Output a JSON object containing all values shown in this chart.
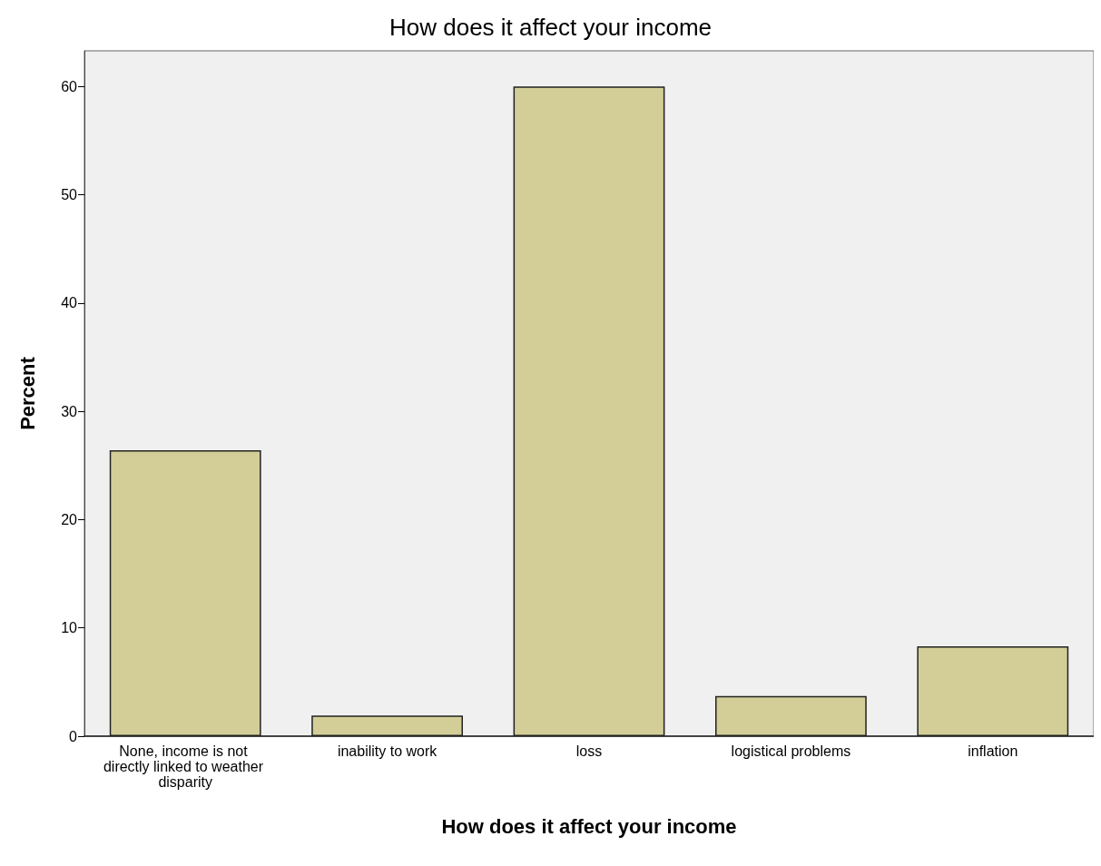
{
  "chart_data": {
    "type": "bar",
    "title": "How does it affect your income",
    "xlabel": "How does it affect your income",
    "ylabel": "Percent",
    "categories": [
      "None, income is not directly linked to weather disparity",
      "inability to work",
      "loss",
      "logistical problems",
      "inflation"
    ],
    "values": [
      26.4,
      1.9,
      60.0,
      3.7,
      8.3
    ],
    "color": "#d3ce97",
    "ylim": [
      0,
      63.3
    ],
    "yticks": [
      0,
      10,
      20,
      30,
      40,
      50,
      60
    ],
    "grid": false
  }
}
